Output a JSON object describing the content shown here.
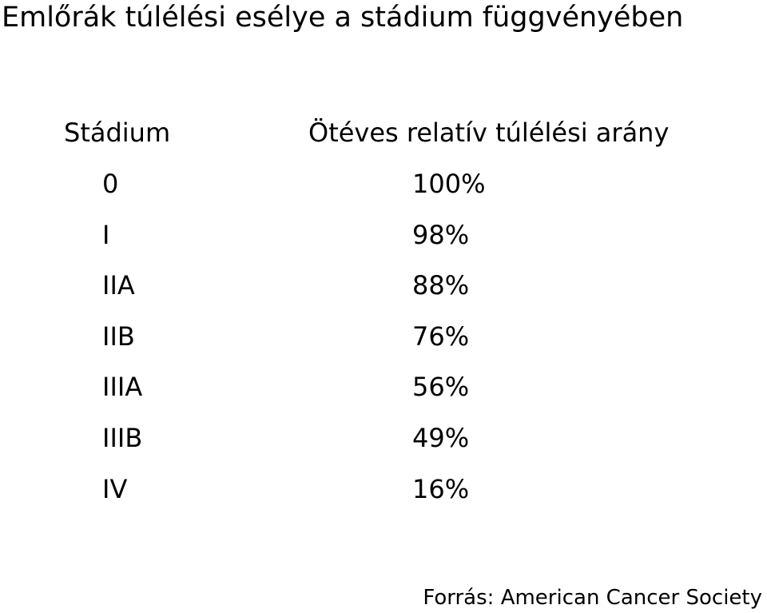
{
  "title": "Emlőrák túlélési esélye a stádium függvényében",
  "table": {
    "headers": {
      "stage": "Stádium",
      "rate": "Ötéves relatív túlélési arány"
    },
    "rows": [
      {
        "stage": "0",
        "rate": "100%"
      },
      {
        "stage": "I",
        "rate": "98%"
      },
      {
        "stage": "IIA",
        "rate": "88%"
      },
      {
        "stage": "IIB",
        "rate": "76%"
      },
      {
        "stage": "IIIA",
        "rate": "56%"
      },
      {
        "stage": "IIIB",
        "rate": "49%"
      },
      {
        "stage": "IV",
        "rate": "16%"
      }
    ]
  },
  "source": "Forrás: American Cancer Society"
}
